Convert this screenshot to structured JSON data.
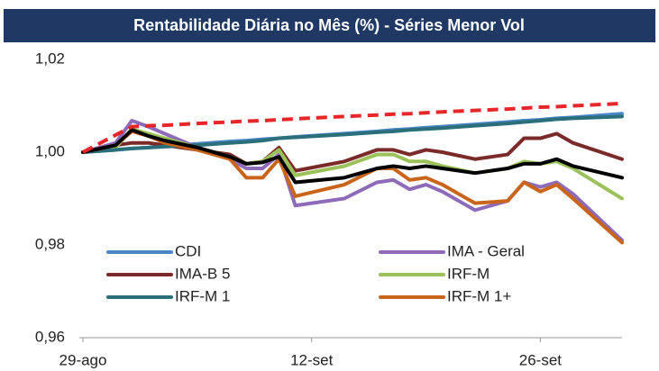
{
  "chart_data": {
    "type": "line",
    "title": "Rentabilidade Diária no Mês (%) - Séries Menor Vol",
    "x": [
      0,
      2,
      3,
      4,
      5,
      7,
      9,
      10,
      11,
      12,
      13,
      16,
      18,
      19,
      20,
      21,
      22,
      24,
      26,
      27,
      28,
      29,
      30,
      33
    ],
    "xlim": [
      0,
      33
    ],
    "xticks": [
      {
        "value": 0,
        "label": "29-ago"
      },
      {
        "value": 14,
        "label": "12-set"
      },
      {
        "value": 28,
        "label": "26-set"
      }
    ],
    "ylim": [
      0.96,
      1.02
    ],
    "yticks": [
      {
        "value": 0.96,
        "label": "0,96"
      },
      {
        "value": 0.98,
        "label": "0,98"
      },
      {
        "value": 1.0,
        "label": "1,00"
      },
      {
        "value": 1.02,
        "label": "1,02"
      }
    ],
    "grid": false,
    "series": [
      {
        "name": "CDI",
        "color": "#4a86c8",
        "values": [
          1.0,
          1.0005,
          1.0008,
          1.001,
          1.0013,
          1.0018,
          1.0023,
          1.0025,
          1.0028,
          1.003,
          1.0033,
          1.004,
          1.0045,
          1.0048,
          1.005,
          1.0053,
          1.0055,
          1.006,
          1.0065,
          1.0068,
          1.007,
          1.0073,
          1.0075,
          1.0083
        ]
      },
      {
        "name": "IMA - Geral",
        "color": "#8e6bb8",
        "values": [
          1.0,
          1.002,
          1.0068,
          1.0055,
          1.004,
          1.001,
          0.9985,
          0.9965,
          0.9965,
          0.9995,
          0.9885,
          0.99,
          0.9935,
          0.994,
          0.992,
          0.993,
          0.9915,
          0.9875,
          0.9895,
          0.9935,
          0.9925,
          0.9935,
          0.991,
          0.981
        ]
      },
      {
        "name": "IMA-B 5",
        "color": "#7b2a2a",
        "values": [
          1.0,
          1.0015,
          1.002,
          1.002,
          1.0015,
          1.0005,
          0.9995,
          0.9975,
          0.998,
          1.001,
          0.996,
          0.998,
          1.0005,
          1.0005,
          0.9995,
          1.0005,
          1.0,
          0.9985,
          0.9995,
          1.003,
          1.003,
          1.004,
          1.002,
          0.9985
        ]
      },
      {
        "name": "IRF-M",
        "color": "#9bc15a",
        "values": [
          1.0,
          1.001,
          1.005,
          1.004,
          1.003,
          1.001,
          0.999,
          0.9975,
          0.998,
          1.0005,
          0.995,
          0.997,
          0.9995,
          0.9995,
          0.998,
          0.998,
          0.997,
          0.9955,
          0.9965,
          0.998,
          0.9975,
          0.998,
          0.9965,
          0.99
        ]
      },
      {
        "name": "IRF-M 1",
        "color": "#2a6f7a",
        "values": [
          1.0,
          1.0005,
          1.0008,
          1.001,
          1.0012,
          1.0015,
          1.002,
          1.0022,
          1.0025,
          1.003,
          1.0032,
          1.0038,
          1.0043,
          1.0045,
          1.0048,
          1.005,
          1.0052,
          1.0057,
          1.0062,
          1.0065,
          1.0068,
          1.0071,
          1.0073,
          1.0077
        ]
      },
      {
        "name": "IRF-M 1+",
        "color": "#c8651b",
        "values": [
          1.0,
          1.0015,
          1.0045,
          1.0035,
          1.002,
          1.0005,
          0.9985,
          0.9945,
          0.9945,
          0.9985,
          0.9905,
          0.993,
          0.9965,
          0.9965,
          0.994,
          0.9945,
          0.993,
          0.989,
          0.9895,
          0.9935,
          0.9915,
          0.993,
          0.99,
          0.9805
        ]
      },
      {
        "color": "#000000",
        "values": [
          1.0,
          1.0015,
          1.0048,
          1.0035,
          1.0025,
          1.001,
          0.999,
          0.9975,
          0.9978,
          0.999,
          0.9935,
          0.9945,
          0.9965,
          0.997,
          0.9965,
          0.997,
          0.9965,
          0.9955,
          0.9965,
          0.9975,
          0.9975,
          0.9985,
          0.997,
          0.9945
        ]
      },
      {
        "color": "#e8262a",
        "dash": true,
        "values": [
          1.0,
          1.0037,
          1.0055,
          1.0057,
          1.0058,
          1.0062,
          1.0065,
          1.0067,
          1.0068,
          1.007,
          1.0072,
          1.0077,
          1.008,
          1.0082,
          1.0083,
          1.0085,
          1.0087,
          1.009,
          1.0093,
          1.0095,
          1.0097,
          1.0098,
          1.01,
          1.0105
        ]
      }
    ]
  }
}
